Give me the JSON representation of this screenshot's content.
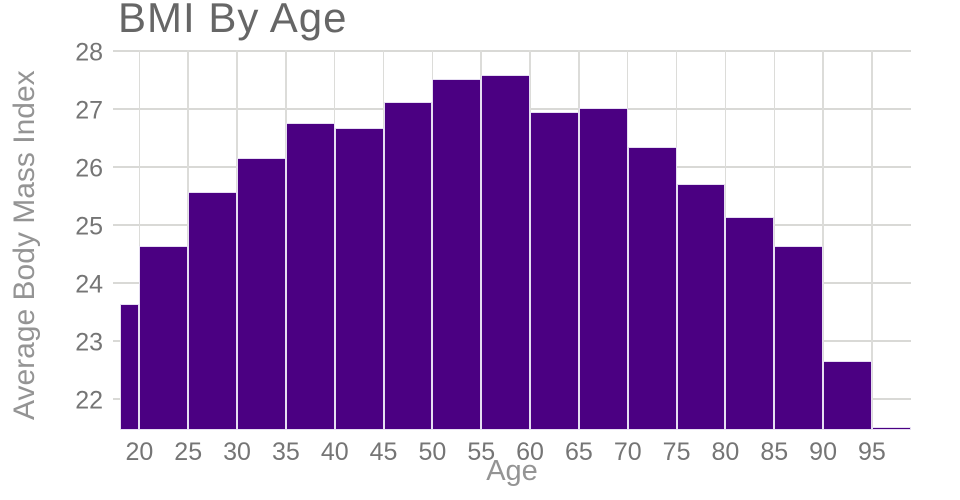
{
  "chart": {
    "title": "BMI By Age",
    "x_axis": {
      "title": "Age"
    },
    "y_axis": {
      "title": "Average Body Mass Index"
    }
  },
  "colors": {
    "background": "#FFFFFF",
    "bar_fill": "#4B0082",
    "bar_stroke": "#E6DEF2",
    "gridline": "#D9D9D6",
    "tick_label_text": "#757575",
    "axis_title_text": "#949494",
    "chart_title_text": "#666666"
  },
  "chart_data": {
    "type": "bar",
    "title": "BMI By Age",
    "xlabel": "Age",
    "ylabel": "Average Body Mass Index",
    "xlim": [
      17.3,
      99.0
    ],
    "ylim": [
      21.45,
      28
    ],
    "grid": true,
    "legend": "none",
    "x_ticks": [
      20,
      25,
      30,
      35,
      40,
      45,
      50,
      55,
      60,
      65,
      70,
      75,
      80,
      85,
      90,
      95
    ],
    "y_ticks": [
      22,
      23,
      24,
      25,
      26,
      27,
      28
    ],
    "bins": [
      {
        "age_start": 18,
        "age_end": 20,
        "bmi": 23.63
      },
      {
        "age_start": 20,
        "age_end": 25,
        "bmi": 24.62
      },
      {
        "age_start": 25,
        "age_end": 30,
        "bmi": 25.55
      },
      {
        "age_start": 30,
        "age_end": 35,
        "bmi": 26.13
      },
      {
        "age_start": 35,
        "age_end": 40,
        "bmi": 26.75
      },
      {
        "age_start": 40,
        "age_end": 45,
        "bmi": 26.65
      },
      {
        "age_start": 45,
        "age_end": 50,
        "bmi": 27.1
      },
      {
        "age_start": 50,
        "age_end": 55,
        "bmi": 27.5
      },
      {
        "age_start": 55,
        "age_end": 60,
        "bmi": 27.57
      },
      {
        "age_start": 60,
        "age_end": 65,
        "bmi": 26.93
      },
      {
        "age_start": 65,
        "age_end": 70,
        "bmi": 27.0
      },
      {
        "age_start": 70,
        "age_end": 75,
        "bmi": 26.33
      },
      {
        "age_start": 75,
        "age_end": 80,
        "bmi": 25.69
      },
      {
        "age_start": 80,
        "age_end": 85,
        "bmi": 25.13
      },
      {
        "age_start": 85,
        "age_end": 90,
        "bmi": 24.62
      },
      {
        "age_start": 90,
        "age_end": 95,
        "bmi": 22.64
      },
      {
        "age_start": 95,
        "age_end": 99,
        "bmi": 21.5
      }
    ]
  }
}
